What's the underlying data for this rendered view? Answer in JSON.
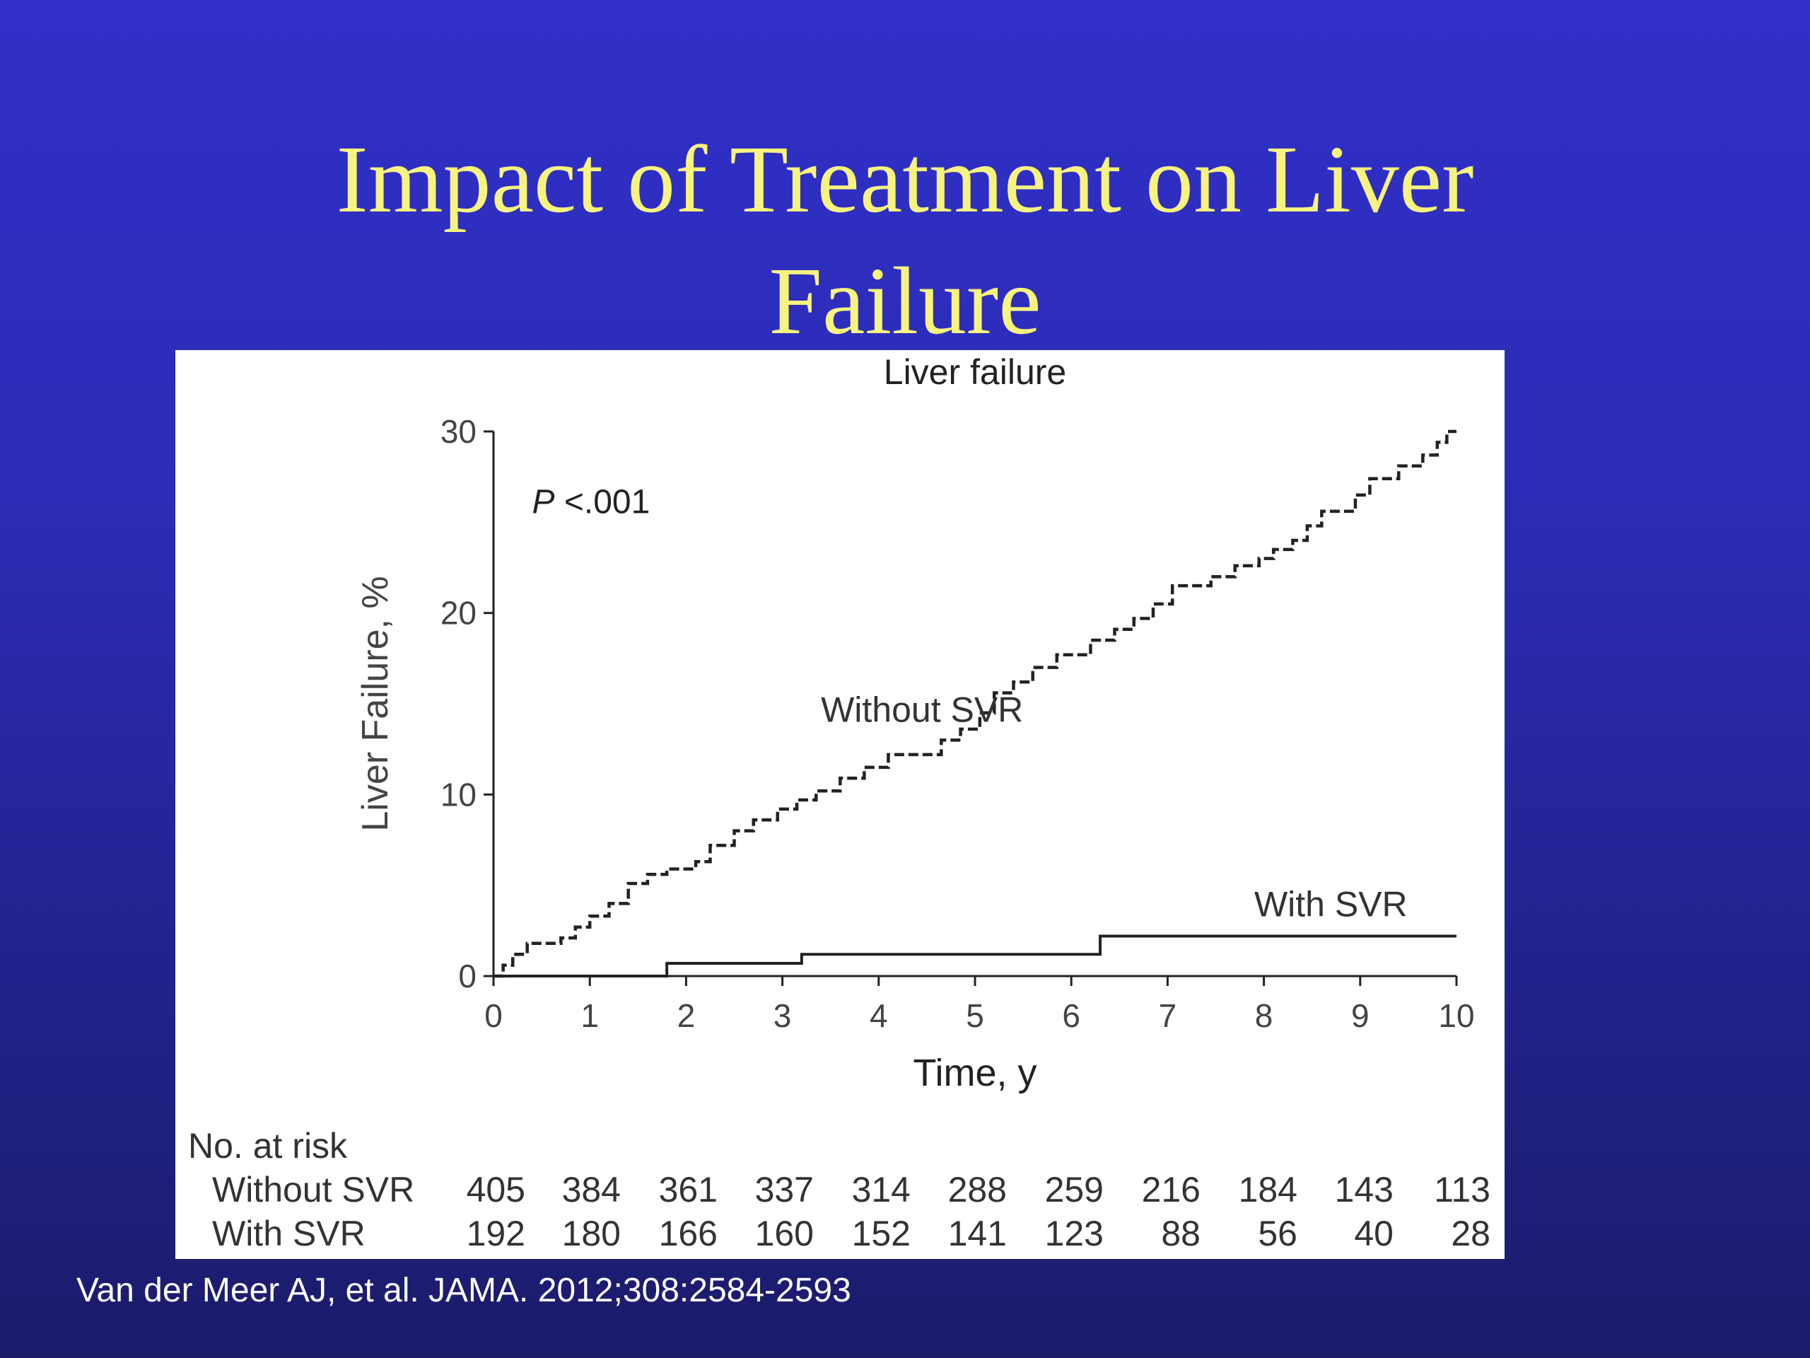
{
  "slide": {
    "title_line1": "Impact of Treatment on Liver",
    "title_line2": "Failure",
    "citation": "Van der Meer AJ, et al. JAMA. 2012;308:2584-2593"
  },
  "colors": {
    "background": "#3030c8",
    "title": "#f6f47e",
    "panel": "#ffffff",
    "ink": "#222222"
  },
  "chart_data": {
    "type": "line",
    "step": true,
    "title": "Liver failure",
    "xlabel": "Time, y",
    "ylabel": "Liver Failure, %",
    "xlim": [
      0,
      10
    ],
    "ylim": [
      0,
      30
    ],
    "x_ticks": [
      0,
      1,
      2,
      3,
      4,
      5,
      6,
      7,
      8,
      9,
      10
    ],
    "y_ticks": [
      0,
      10,
      20,
      30
    ],
    "grid": false,
    "legend": "inline labels",
    "annotation": {
      "prefix": "P",
      "text": " <.001"
    },
    "series": [
      {
        "name": "Without SVR",
        "style": "dashed",
        "points": [
          [
            0,
            0
          ],
          [
            0.1,
            0.6
          ],
          [
            0.2,
            1.2
          ],
          [
            0.35,
            1.8
          ],
          [
            0.7,
            2.1
          ],
          [
            0.85,
            2.7
          ],
          [
            1.0,
            3.3
          ],
          [
            1.2,
            4.0
          ],
          [
            1.4,
            5.1
          ],
          [
            1.6,
            5.6
          ],
          [
            1.8,
            5.9
          ],
          [
            2.1,
            6.3
          ],
          [
            2.25,
            7.2
          ],
          [
            2.5,
            8.0
          ],
          [
            2.7,
            8.6
          ],
          [
            2.95,
            9.2
          ],
          [
            3.15,
            9.7
          ],
          [
            3.35,
            10.2
          ],
          [
            3.6,
            10.9
          ],
          [
            3.85,
            11.5
          ],
          [
            4.1,
            12.2
          ],
          [
            4.65,
            13.0
          ],
          [
            4.85,
            13.6
          ],
          [
            5.05,
            14.5
          ],
          [
            5.2,
            15.6
          ],
          [
            5.4,
            16.2
          ],
          [
            5.6,
            17.0
          ],
          [
            5.85,
            17.7
          ],
          [
            6.2,
            18.5
          ],
          [
            6.45,
            19.1
          ],
          [
            6.65,
            19.7
          ],
          [
            6.85,
            20.5
          ],
          [
            7.05,
            21.5
          ],
          [
            7.45,
            22.0
          ],
          [
            7.7,
            22.6
          ],
          [
            7.95,
            23.0
          ],
          [
            8.1,
            23.5
          ],
          [
            8.3,
            24.0
          ],
          [
            8.45,
            24.8
          ],
          [
            8.6,
            25.6
          ],
          [
            8.95,
            26.5
          ],
          [
            9.1,
            27.4
          ],
          [
            9.4,
            28.1
          ],
          [
            9.65,
            28.7
          ],
          [
            9.8,
            29.4
          ],
          [
            9.9,
            30.0
          ],
          [
            10.0,
            30.0
          ]
        ]
      },
      {
        "name": "With SVR",
        "style": "solid",
        "points": [
          [
            0,
            0
          ],
          [
            1.8,
            0.7
          ],
          [
            3.2,
            1.2
          ],
          [
            6.3,
            2.2
          ],
          [
            10.0,
            2.2
          ]
        ]
      }
    ],
    "series_labels": [
      {
        "text": "Without SVR",
        "x": 3.4,
        "y": 14.0
      },
      {
        "text": "With SVR",
        "x": 7.9,
        "y": 3.3
      }
    ],
    "risk_table": {
      "heading": "No. at risk",
      "rows": [
        {
          "label": "Without SVR",
          "values": [
            "405",
            "384",
            "361",
            "337",
            "314",
            "288",
            "259",
            "216",
            "184",
            "143",
            "113"
          ]
        },
        {
          "label": "With SVR",
          "values": [
            "192",
            "180",
            "166",
            "160",
            "152",
            "141",
            "123",
            "88",
            "56",
            "40",
            "28"
          ]
        }
      ]
    }
  }
}
